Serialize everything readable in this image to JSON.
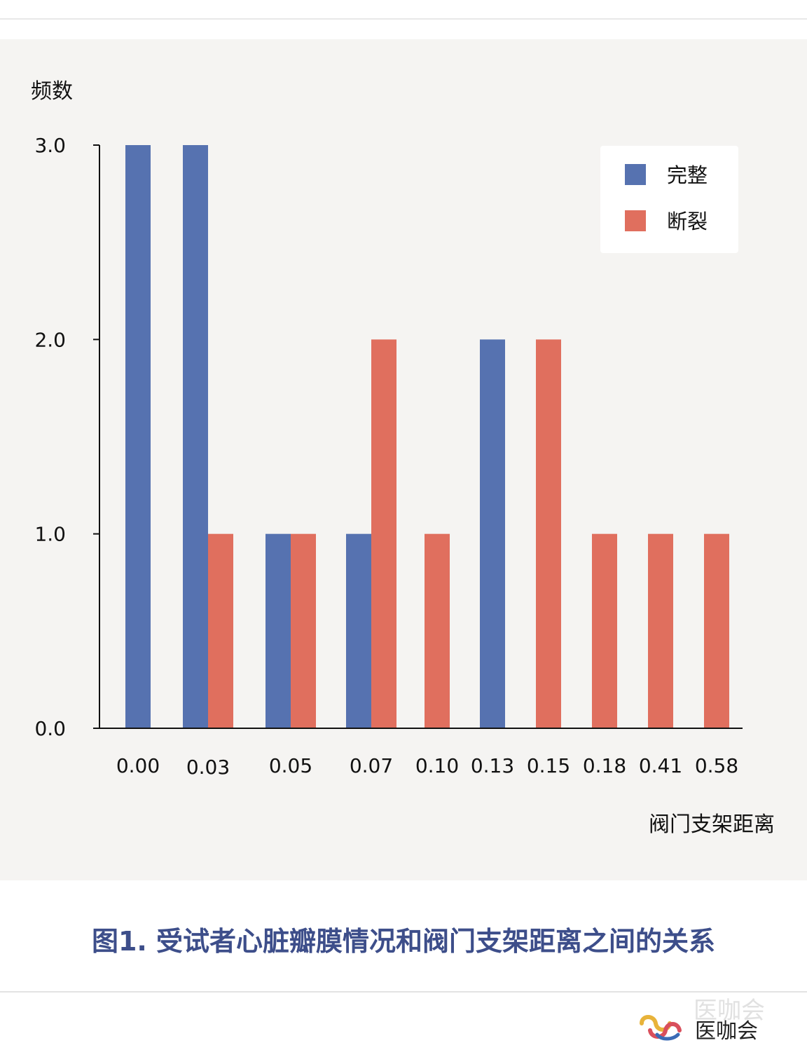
{
  "chart_data": {
    "type": "bar",
    "ylabel": "频数",
    "xlabel": "阀门支架距离",
    "caption": "图1. 受试者心脏瓣膜情况和阀门支架距离之间的关系",
    "categories": [
      "0.00",
      "0.03",
      "0.05",
      "0.07",
      "0.10",
      "0.13",
      "0.15",
      "0.18",
      "0.41",
      "0.58"
    ],
    "series": [
      {
        "name": "完整",
        "color": "#5672b0",
        "values": [
          3,
          3,
          1,
          1,
          0,
          2,
          0,
          0,
          0,
          0
        ]
      },
      {
        "name": "断裂",
        "color": "#e06f5e",
        "values": [
          0,
          1,
          1,
          2,
          1,
          0,
          2,
          1,
          1,
          1
        ]
      }
    ],
    "yticks": [
      "0.0",
      "1.0",
      "2.0",
      "3.0"
    ],
    "ylim": [
      0,
      3
    ],
    "grid": false,
    "legend_position": "top-right"
  },
  "brand": {
    "name": "医咖会",
    "watermark": "医咖会"
  }
}
